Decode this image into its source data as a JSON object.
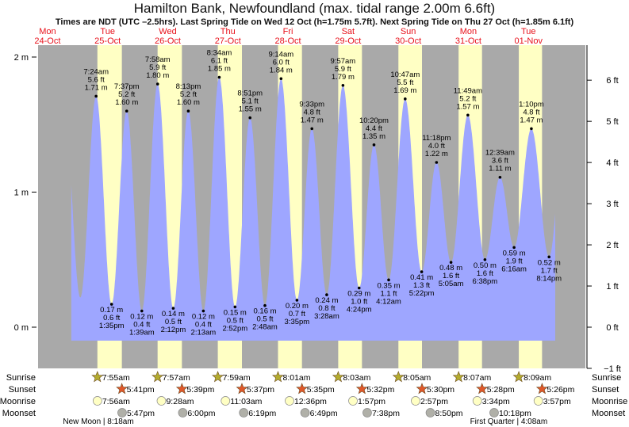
{
  "header": {
    "title": "Hamilton Bank, Newfoundland (max. tidal range 2.00m 6.6ft)",
    "subtitle": "Times are NDT (UTC –2.5hrs). Last Spring Tide on Wed 12 Oct (h=1.75m 5.7ft). Next Spring Tide on Thu 27 Oct (h=1.85m 6.1ft)"
  },
  "colors": {
    "night": "#a9a9a9",
    "day": "#ffffc4",
    "water": "#9ea6ff",
    "day_label": "#e8101a",
    "sunrise": "#b3ac2e",
    "sunset": "#e0582a",
    "moonrise": "#ffffc4",
    "moonset": "#b0b0a8"
  },
  "chart_data": {
    "type": "area",
    "title": "Hamilton Bank, Newfoundland (max. tidal range 2.00m 6.6ft)",
    "ylabel_left": "m",
    "ylabel_right": "ft",
    "ylim_m": [
      -0.3,
      2.1
    ],
    "left_ticks": [
      {
        "v": 0,
        "label": "0 m"
      },
      {
        "v": 1,
        "label": "1 m"
      },
      {
        "v": 2,
        "label": "2 m"
      }
    ],
    "right_ticks": [
      {
        "v": -1,
        "label": "−1 ft"
      },
      {
        "v": 0,
        "label": "0 ft"
      },
      {
        "v": 1,
        "label": "1 ft"
      },
      {
        "v": 2,
        "label": "2 ft"
      },
      {
        "v": 3,
        "label": "3 ft"
      },
      {
        "v": 4,
        "label": "4 ft"
      },
      {
        "v": 5,
        "label": "5 ft"
      },
      {
        "v": 6,
        "label": "6 ft"
      }
    ],
    "days": [
      {
        "dow": "Mon",
        "date": "24-Oct"
      },
      {
        "dow": "Tue",
        "date": "25-Oct"
      },
      {
        "dow": "Wed",
        "date": "26-Oct"
      },
      {
        "dow": "Thu",
        "date": "27-Oct"
      },
      {
        "dow": "Fri",
        "date": "28-Oct"
      },
      {
        "dow": "Sat",
        "date": "29-Oct"
      },
      {
        "dow": "Sun",
        "date": "30-Oct"
      },
      {
        "dow": "Mon",
        "date": "31-Oct"
      },
      {
        "dow": "Tue",
        "date": "01-Nov"
      }
    ],
    "tides": [
      {
        "day": 1,
        "time": "7:24am",
        "m": 1.71,
        "ft": 5.6,
        "type": "high"
      },
      {
        "day": 1,
        "time": "1:35pm",
        "m": 0.17,
        "ft": 0.6,
        "type": "low"
      },
      {
        "day": 1,
        "time": "7:37pm",
        "m": 1.6,
        "ft": 5.2,
        "type": "high"
      },
      {
        "day": 2,
        "time": "1:39am",
        "m": 0.12,
        "ft": 0.4,
        "type": "low"
      },
      {
        "day": 2,
        "time": "7:58am",
        "m": 1.8,
        "ft": 5.9,
        "type": "high"
      },
      {
        "day": 2,
        "time": "2:12pm",
        "m": 0.14,
        "ft": 0.5,
        "type": "low"
      },
      {
        "day": 2,
        "time": "8:13pm",
        "m": 1.6,
        "ft": 5.2,
        "type": "high"
      },
      {
        "day": 3,
        "time": "2:13am",
        "m": 0.12,
        "ft": 0.4,
        "type": "low"
      },
      {
        "day": 3,
        "time": "8:34am",
        "m": 1.85,
        "ft": 6.1,
        "type": "high"
      },
      {
        "day": 3,
        "time": "2:52pm",
        "m": 0.15,
        "ft": 0.5,
        "type": "low"
      },
      {
        "day": 3,
        "time": "8:51pm",
        "m": 1.55,
        "ft": 5.1,
        "type": "high"
      },
      {
        "day": 4,
        "time": "2:48am",
        "m": 0.16,
        "ft": 0.5,
        "type": "low"
      },
      {
        "day": 4,
        "time": "9:14am",
        "m": 1.84,
        "ft": 6.0,
        "type": "high"
      },
      {
        "day": 4,
        "time": "3:35pm",
        "m": 0.2,
        "ft": 0.7,
        "type": "low"
      },
      {
        "day": 4,
        "time": "9:33pm",
        "m": 1.47,
        "ft": 4.8,
        "type": "high"
      },
      {
        "day": 5,
        "time": "3:28am",
        "m": 0.24,
        "ft": 0.8,
        "type": "low"
      },
      {
        "day": 5,
        "time": "9:57am",
        "m": 1.79,
        "ft": 5.9,
        "type": "high"
      },
      {
        "day": 5,
        "time": "4:24pm",
        "m": 0.29,
        "ft": 1.0,
        "type": "low"
      },
      {
        "day": 5,
        "time": "10:20pm",
        "m": 1.35,
        "ft": 4.4,
        "type": "high"
      },
      {
        "day": 6,
        "time": "4:12am",
        "m": 0.35,
        "ft": 1.1,
        "type": "low"
      },
      {
        "day": 6,
        "time": "10:47am",
        "m": 1.69,
        "ft": 5.5,
        "type": "high"
      },
      {
        "day": 6,
        "time": "5:22pm",
        "m": 0.41,
        "ft": 1.3,
        "type": "low"
      },
      {
        "day": 6,
        "time": "11:18pm",
        "m": 1.22,
        "ft": 4.0,
        "type": "high"
      },
      {
        "day": 7,
        "time": "5:05am",
        "m": 0.48,
        "ft": 1.6,
        "type": "low"
      },
      {
        "day": 7,
        "time": "11:49am",
        "m": 1.57,
        "ft": 5.2,
        "type": "high"
      },
      {
        "day": 7,
        "time": "6:38pm",
        "m": 0.5,
        "ft": 1.6,
        "type": "low"
      },
      {
        "day": 8,
        "time": "12:39am",
        "m": 1.11,
        "ft": 3.6,
        "type": "high"
      },
      {
        "day": 8,
        "time": "6:16am",
        "m": 0.59,
        "ft": 1.9,
        "type": "low"
      },
      {
        "day": 8,
        "time": "1:10pm",
        "m": 1.47,
        "ft": 4.8,
        "type": "high"
      },
      {
        "day": 8,
        "time": "8:14pm",
        "m": 0.52,
        "ft": 1.7,
        "type": "low"
      }
    ],
    "sun_moon": {
      "labels": {
        "sunrise": "Sunrise",
        "sunset": "Sunset",
        "moonrise": "Moonrise",
        "moonset": "Moonset"
      },
      "sunrise": [
        {
          "day": 1,
          "time": "7:55am"
        },
        {
          "day": 2,
          "time": "7:57am"
        },
        {
          "day": 3,
          "time": "7:59am"
        },
        {
          "day": 4,
          "time": "8:01am"
        },
        {
          "day": 5,
          "time": "8:03am"
        },
        {
          "day": 6,
          "time": "8:05am"
        },
        {
          "day": 7,
          "time": "8:07am"
        },
        {
          "day": 8,
          "time": "8:09am"
        }
      ],
      "sunset": [
        {
          "day": 1,
          "time": "5:41pm"
        },
        {
          "day": 2,
          "time": "5:39pm"
        },
        {
          "day": 3,
          "time": "5:37pm"
        },
        {
          "day": 4,
          "time": "5:35pm"
        },
        {
          "day": 5,
          "time": "5:32pm"
        },
        {
          "day": 6,
          "time": "5:30pm"
        },
        {
          "day": 7,
          "time": "5:28pm"
        },
        {
          "day": 8,
          "time": "5:26pm"
        }
      ],
      "moonrise": [
        {
          "day": 1,
          "time": "7:56am"
        },
        {
          "day": 2,
          "time": "9:28am"
        },
        {
          "day": 3,
          "time": "11:03am"
        },
        {
          "day": 4,
          "time": "12:36pm"
        },
        {
          "day": 5,
          "time": "1:57pm"
        },
        {
          "day": 6,
          "time": "2:57pm"
        },
        {
          "day": 7,
          "time": "3:34pm"
        },
        {
          "day": 8,
          "time": "3:57pm"
        }
      ],
      "moonset": [
        {
          "day": 1,
          "time": "5:47pm"
        },
        {
          "day": 2,
          "time": "6:00pm"
        },
        {
          "day": 3,
          "time": "6:19pm"
        },
        {
          "day": 4,
          "time": "6:49pm"
        },
        {
          "day": 5,
          "time": "7:38pm"
        },
        {
          "day": 6,
          "time": "8:50pm"
        },
        {
          "day": 7,
          "time": "10:18pm"
        }
      ]
    },
    "moon_phases": [
      {
        "day": 1,
        "time": "8:18am",
        "label": "New Moon | 8:18am"
      },
      {
        "day": 8,
        "time": "4:08am",
        "label": "First Quarter | 4:08am"
      }
    ]
  }
}
